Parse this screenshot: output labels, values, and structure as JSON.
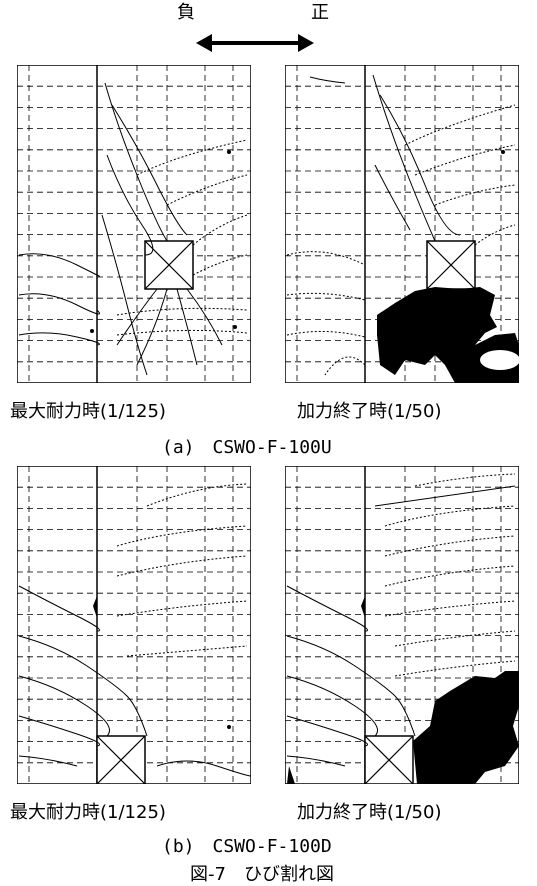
{
  "direction": {
    "negative": "負",
    "positive": "正"
  },
  "caption_peak": "最大耐力時(1/125)",
  "caption_end": "加力終了時(1/50)",
  "figure_a": "(a)　CSWO-F-100U",
  "figure_b": "(b)　CSWO-F-100D",
  "figure_title": "図-7　ひび割れ図",
  "colors": {
    "line": "#000000",
    "background": "#ffffff"
  }
}
